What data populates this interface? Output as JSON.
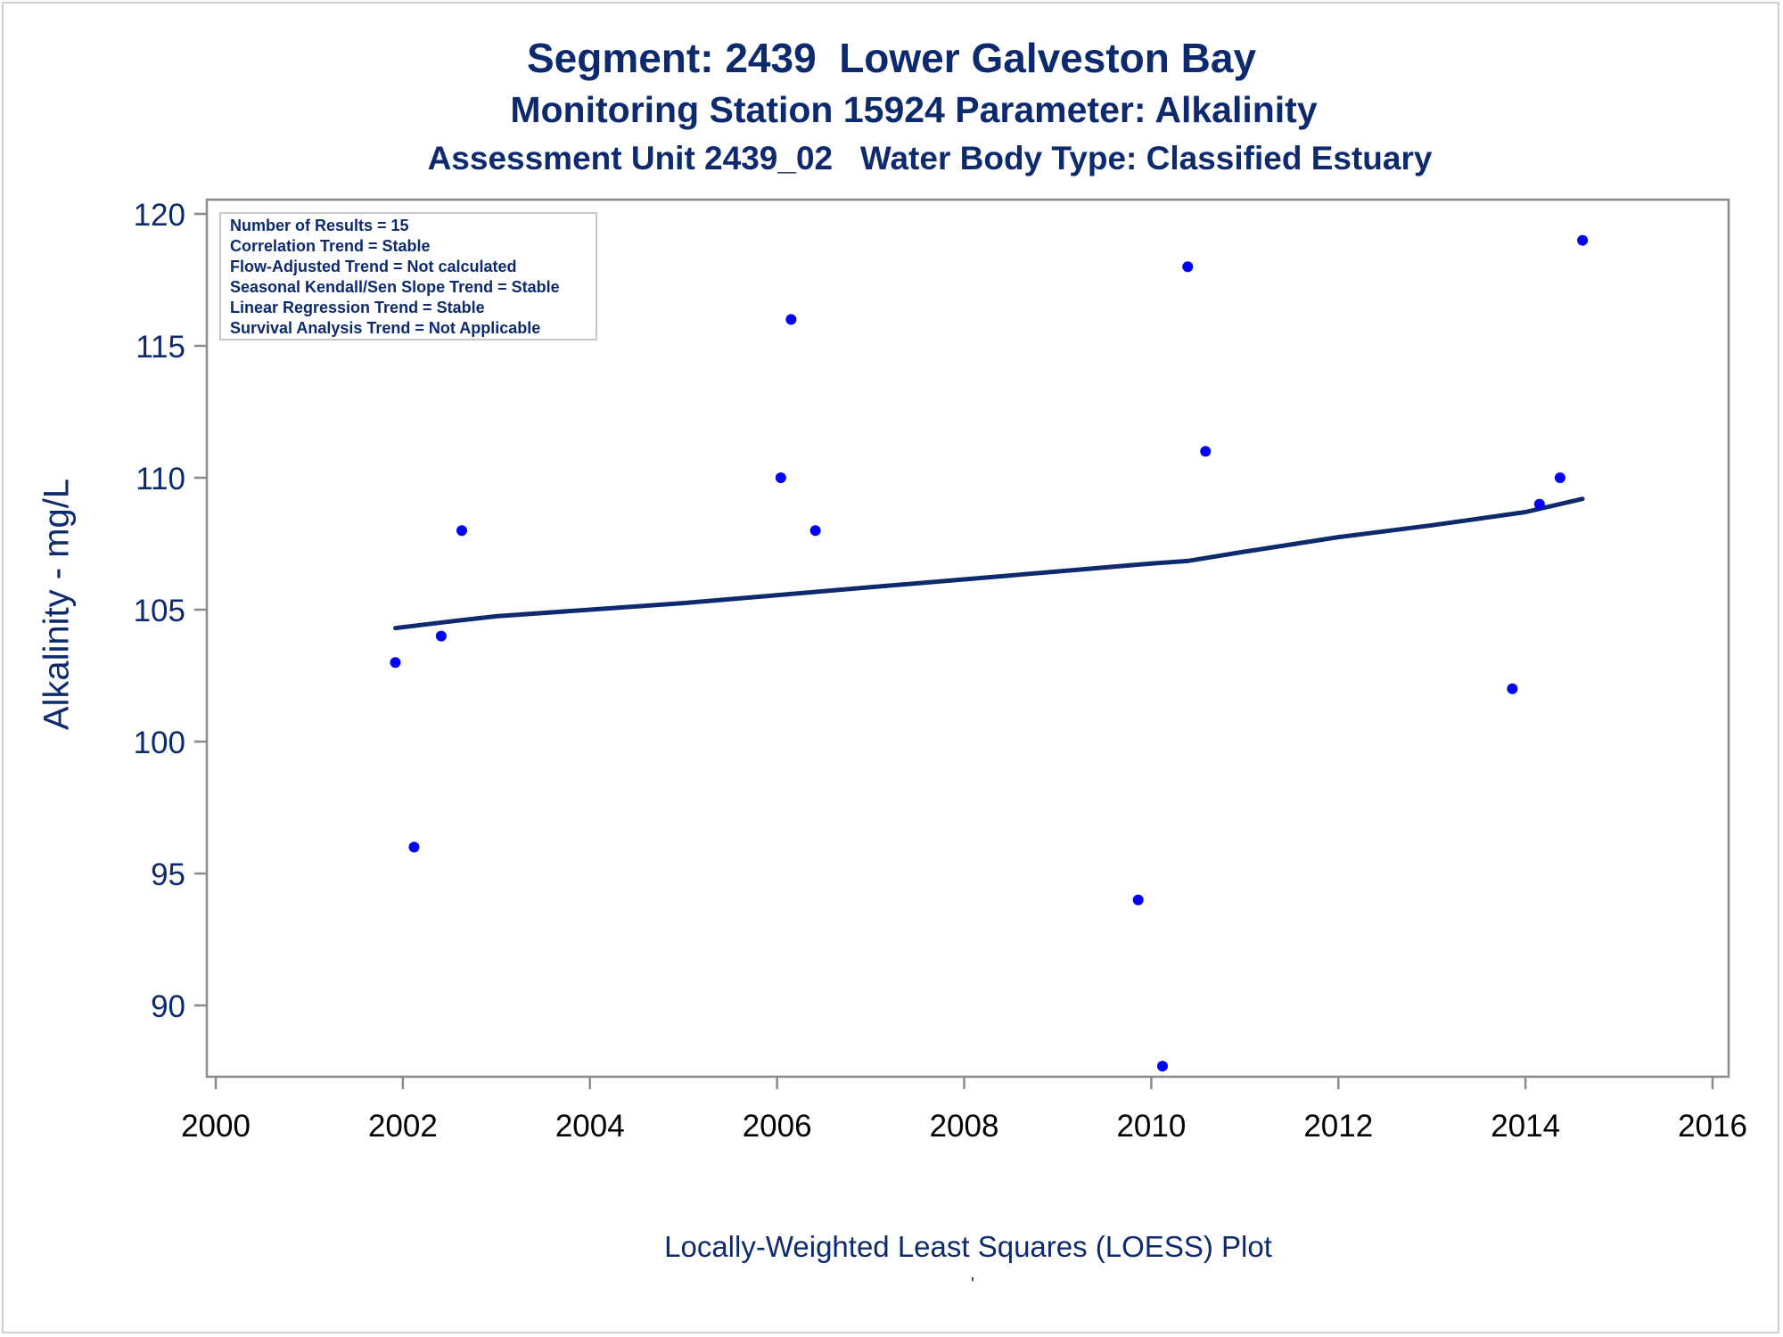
{
  "chart_data": {
    "type": "scatter",
    "title": "Segment: 2439  Lower Galveston Bay",
    "subtitle": "Monitoring Station 15924 Parameter: Alkalinity",
    "subtitle2": "Assessment Unit 2439_02   Water Body Type: Classified Estuary",
    "xlabel": "Locally-Weighted Least Squares (LOESS) Plot",
    "ylabel": "Alkalinity - mg/L",
    "footer_mark": "'",
    "xlim": [
      2000,
      2016
    ],
    "ylim": [
      87.5,
      120.5
    ],
    "x_ticks": [
      2000,
      2002,
      2004,
      2006,
      2008,
      2010,
      2012,
      2014,
      2016
    ],
    "y_ticks": [
      90,
      95,
      100,
      105,
      110,
      115,
      120
    ],
    "grid": false,
    "point_color": "#0000ff",
    "line_color": "#0d2a6e",
    "text_color": "#0d2a6e",
    "stats_box": [
      "Number of Results = 15",
      "Correlation Trend = Stable",
      "Flow-Adjusted Trend = Not calculated",
      "Seasonal Kendall/Sen Slope Trend = Stable",
      "Linear Regression Trend = Stable",
      "Survival Analysis Trend = Not Applicable"
    ],
    "points": [
      {
        "x": 2001.92,
        "y": 103.0
      },
      {
        "x": 2002.12,
        "y": 96.0
      },
      {
        "x": 2002.41,
        "y": 104.0
      },
      {
        "x": 2002.63,
        "y": 108.0
      },
      {
        "x": 2006.04,
        "y": 110.0
      },
      {
        "x": 2006.15,
        "y": 116.0
      },
      {
        "x": 2006.41,
        "y": 108.0
      },
      {
        "x": 2009.86,
        "y": 94.0
      },
      {
        "x": 2010.12,
        "y": 87.7
      },
      {
        "x": 2010.39,
        "y": 118.0
      },
      {
        "x": 2010.58,
        "y": 111.0
      },
      {
        "x": 2013.86,
        "y": 102.0
      },
      {
        "x": 2014.15,
        "y": 109.0
      },
      {
        "x": 2014.37,
        "y": 110.0
      },
      {
        "x": 2014.61,
        "y": 119.0
      }
    ],
    "loess": [
      {
        "x": 2001.92,
        "y": 104.3
      },
      {
        "x": 2002.5,
        "y": 104.55
      },
      {
        "x": 2003.0,
        "y": 104.75
      },
      {
        "x": 2004.0,
        "y": 105.0
      },
      {
        "x": 2005.0,
        "y": 105.25
      },
      {
        "x": 2006.0,
        "y": 105.55
      },
      {
        "x": 2007.0,
        "y": 105.85
      },
      {
        "x": 2008.0,
        "y": 106.15
      },
      {
        "x": 2009.0,
        "y": 106.45
      },
      {
        "x": 2010.0,
        "y": 106.75
      },
      {
        "x": 2010.4,
        "y": 106.85
      },
      {
        "x": 2011.0,
        "y": 107.2
      },
      {
        "x": 2012.0,
        "y": 107.75
      },
      {
        "x": 2013.0,
        "y": 108.2
      },
      {
        "x": 2014.0,
        "y": 108.7
      },
      {
        "x": 2014.61,
        "y": 109.2
      }
    ]
  }
}
